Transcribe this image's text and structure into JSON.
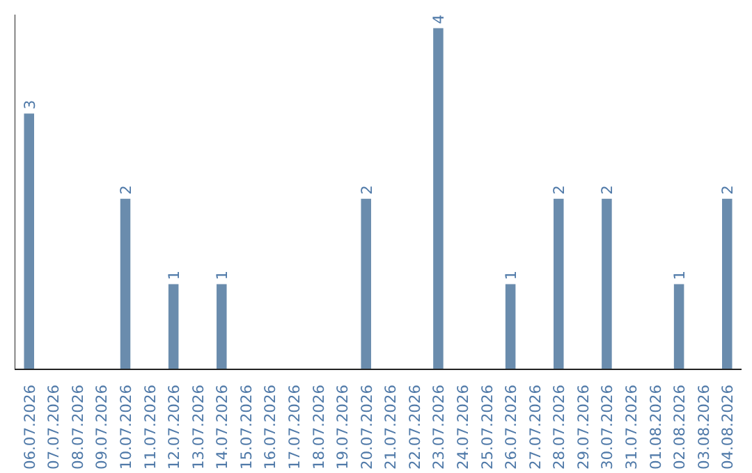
{
  "chart_data": {
    "type": "bar",
    "categories": [
      "06.07.2026",
      "07.07.2026",
      "08.07.2026",
      "09.07.2026",
      "10.07.2026",
      "11.07.2026",
      "12.07.2026",
      "13.07.2026",
      "14.07.2026",
      "15.07.2026",
      "16.07.2026",
      "17.07.2026",
      "18.07.2026",
      "19.07.2026",
      "20.07.2026",
      "21.07.2026",
      "22.07.2026",
      "23.07.2026",
      "24.07.2026",
      "25.07.2026",
      "26.07.2026",
      "27.07.2026",
      "28.07.2026",
      "29.07.2026",
      "30.07.2026",
      "31.07.2026",
      "01.08.2026",
      "02.08.2026",
      "03.08.2026",
      "04.08.2026"
    ],
    "values": [
      3,
      0,
      0,
      0,
      2,
      0,
      1,
      0,
      1,
      0,
      0,
      0,
      0,
      0,
      2,
      0,
      0,
      4,
      0,
      0,
      1,
      0,
      2,
      0,
      2,
      0,
      0,
      1,
      0,
      2
    ],
    "value_labels": [
      "3",
      null,
      null,
      null,
      "2",
      null,
      "1",
      null,
      "1",
      null,
      null,
      null,
      null,
      null,
      "2",
      null,
      null,
      "4",
      null,
      null,
      "1",
      null,
      "2",
      null,
      "2",
      null,
      null,
      "1",
      null,
      "2"
    ],
    "color": "#6a8cad",
    "ylim": [
      0,
      4.16
    ],
    "tick_labels": "x",
    "grid": false
  }
}
